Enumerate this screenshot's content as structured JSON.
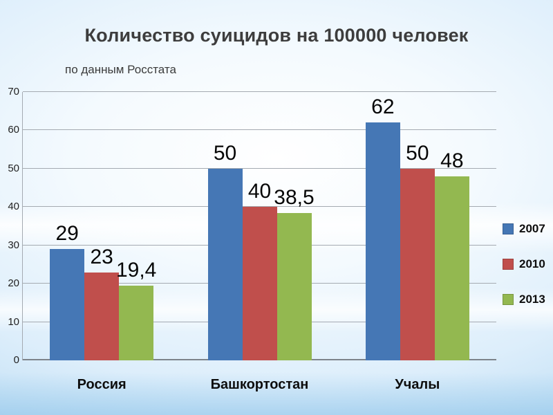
{
  "title": "Количество суицидов на 100000 человек",
  "subtitle": "по данным Росстата",
  "chart_data": {
    "type": "bar",
    "title": "Количество суицидов на 100000 человек",
    "subtitle": "по данным Росстата",
    "categories": [
      "Россия",
      "Башкортостан",
      "Учалы"
    ],
    "series": [
      {
        "name": "2007",
        "color": "#4577b5",
        "values": [
          29,
          50,
          62
        ],
        "labels": [
          "29",
          "50",
          "62"
        ]
      },
      {
        "name": "2010",
        "color": "#c04f4c",
        "values": [
          23,
          40,
          50
        ],
        "labels": [
          "23",
          "40",
          "50"
        ]
      },
      {
        "name": "2013",
        "color": "#93b850",
        "values": [
          19.4,
          38.5,
          48
        ],
        "labels": [
          "19,4",
          "38,5",
          "48"
        ]
      }
    ],
    "xlabel": "",
    "ylabel": "",
    "ylim": [
      0,
      70
    ],
    "yticks": [
      0,
      10,
      20,
      30,
      40,
      50,
      60,
      70
    ],
    "grid": true,
    "legend_position": "right"
  }
}
